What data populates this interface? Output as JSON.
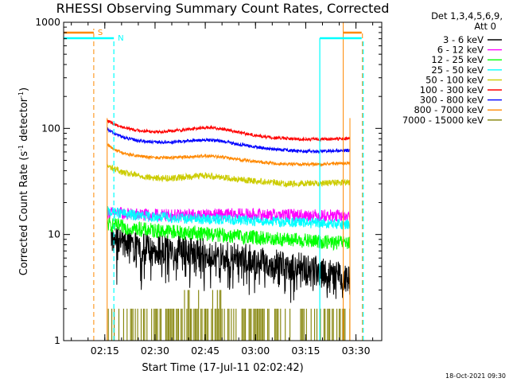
{
  "chart_data": {
    "type": "line",
    "title": "RHESSI Observing Summary Count Rates, Corrected",
    "xlabel": "Start Time (17-Jul-11 02:02:42)",
    "ylabel_parts": {
      "prefix": "Corrected Count Rate (s",
      "exp1": "-1",
      "mid": " detector",
      "exp2": "-1",
      "suffix": ")"
    },
    "x_unit": "minutes after 02:02:42",
    "xlim": [
      0,
      95
    ],
    "ylim": [
      1,
      1000
    ],
    "yscale": "log",
    "x_ticks": [
      {
        "label": "02:15",
        "value": 12.3
      },
      {
        "label": "02:30",
        "value": 27.3
      },
      {
        "label": "02:45",
        "value": 42.3
      },
      {
        "label": "03:00",
        "value": 57.3
      },
      {
        "label": "03:15",
        "value": 72.3
      },
      {
        "label": "03:30",
        "value": 87.3
      }
    ],
    "y_ticks": [
      {
        "label": "1",
        "value": 1
      },
      {
        "label": "10",
        "value": 10
      },
      {
        "label": "100",
        "value": 100
      },
      {
        "label": "1000",
        "value": 1000
      }
    ],
    "legend": {
      "position": "right",
      "header": [
        "Det 1,3,4,5,6,9,",
        "Att 0"
      ]
    },
    "series": [
      {
        "name": "3 - 6 keV",
        "color": "#000000",
        "x": [
          14,
          17,
          20,
          25,
          30,
          35,
          40,
          45,
          50,
          55,
          60,
          65,
          70,
          75,
          80,
          85.5
        ],
        "y": [
          9.5,
          8.5,
          8,
          7.5,
          7.2,
          7,
          6.8,
          6.5,
          6.2,
          5.9,
          5.5,
          5.2,
          5.0,
          4.6,
          4.2,
          3.8
        ],
        "noise": 0.14,
        "spiky": true
      },
      {
        "name": "6 - 12 keV",
        "color": "#ff00ff",
        "x": [
          13,
          16,
          20,
          25,
          30,
          35,
          40,
          45,
          50,
          55,
          60,
          65,
          70,
          75,
          80,
          85.5
        ],
        "y": [
          16,
          16,
          15.5,
          15.3,
          15.2,
          15.1,
          15.2,
          15.3,
          15.4,
          15.4,
          15.3,
          15.3,
          15.2,
          15.1,
          15.0,
          15.0
        ],
        "noise": 0.06,
        "spiky": false
      },
      {
        "name": "12 - 25 keV",
        "color": "#00ff00",
        "x": [
          13,
          16,
          20,
          25,
          30,
          35,
          40,
          45,
          50,
          55,
          60,
          65,
          70,
          75,
          80,
          85.5
        ],
        "y": [
          12.5,
          12,
          11.5,
          11,
          10.8,
          10.5,
          10.3,
          10.0,
          9.7,
          9.5,
          9.2,
          9.0,
          8.8,
          8.6,
          8.4,
          8.3
        ],
        "noise": 0.07,
        "spiky": false
      },
      {
        "name": "25 - 50 keV",
        "color": "#00ffff",
        "x": [
          13,
          16,
          20,
          25,
          30,
          35,
          40,
          45,
          50,
          55,
          60,
          65,
          70,
          75,
          80,
          85.5
        ],
        "y": [
          16.5,
          16,
          15.3,
          14.8,
          14.5,
          14.2,
          14.0,
          13.9,
          13.8,
          13.6,
          13.4,
          13.2,
          13.0,
          12.8,
          12.6,
          12.5
        ],
        "noise": 0.05,
        "spiky": false
      },
      {
        "name": "50 - 100 keV",
        "color": "#cccc00",
        "x": [
          13,
          15,
          18,
          22,
          27,
          32,
          37,
          42,
          47,
          52,
          57,
          62,
          67,
          72,
          77,
          85.5
        ],
        "y": [
          44,
          42,
          38,
          36,
          34,
          34,
          35,
          36,
          35,
          33,
          32,
          31,
          30,
          30.5,
          30.5,
          31
        ],
        "noise": 0.03,
        "spiky": false
      },
      {
        "name": "100 - 300 keV",
        "color": "#ff0000",
        "x": [
          13,
          15,
          18,
          22,
          27,
          32,
          37,
          42,
          47,
          52,
          57,
          62,
          67,
          72,
          77,
          85.5
        ],
        "y": [
          118,
          110,
          102,
          96,
          93,
          94,
          98,
          102,
          100,
          92,
          86,
          82,
          80,
          79,
          79,
          80
        ],
        "noise": 0.015,
        "spiky": false
      },
      {
        "name": "300 - 800 keV",
        "color": "#0000ff",
        "x": [
          13,
          15,
          18,
          22,
          27,
          32,
          37,
          42,
          47,
          52,
          57,
          62,
          67,
          72,
          77,
          85.5
        ],
        "y": [
          98,
          90,
          82,
          77,
          74,
          74,
          76,
          78,
          76,
          71,
          67,
          64,
          62,
          61,
          61,
          62
        ],
        "noise": 0.015,
        "spiky": false
      },
      {
        "name": "800 - 7000 keV",
        "color": "#ff8800",
        "x": [
          13,
          15,
          18,
          22,
          27,
          32,
          37,
          42,
          47,
          52,
          57,
          62,
          67,
          72,
          77,
          85.5
        ],
        "y": [
          70,
          64,
          58,
          55,
          53,
          53,
          54,
          55,
          54,
          51,
          49,
          47,
          46,
          46,
          46,
          47
        ],
        "noise": 0.015,
        "spiky": false
      },
      {
        "name": "7000 - 15000 keV",
        "color": "#808000",
        "x": [
          13,
          85.5
        ],
        "y": [
          1,
          1
        ],
        "sparse": true
      }
    ],
    "annotations": {
      "saa_label": "S",
      "night_label": "N",
      "saa_color": "#ff8800",
      "night_color": "#00ffff",
      "saa_segments": [
        [
          0,
          9
        ],
        [
          83.5,
          89
        ]
      ],
      "night_segments": [
        [
          0,
          15
        ],
        [
          76.5,
          89
        ]
      ],
      "saa_boundaries": [
        9,
        83.5
      ],
      "night_boundaries": [
        15,
        76.5
      ],
      "data_bounds": [
        13,
        85.5
      ]
    },
    "timestamp": "18-Oct-2021 09:30"
  }
}
